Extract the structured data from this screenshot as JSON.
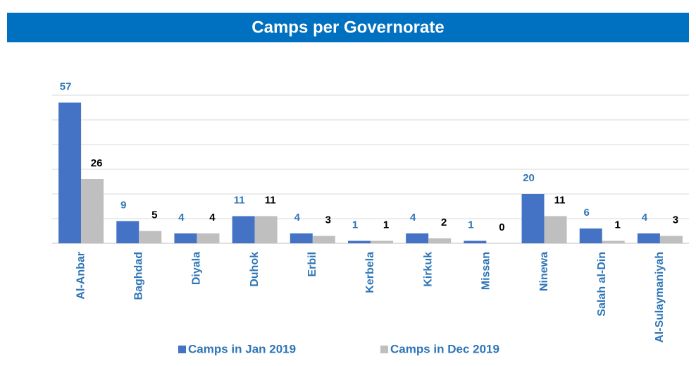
{
  "chart_data": {
    "type": "bar",
    "title": "Camps per Governorate",
    "categories": [
      "Al-Anbar",
      "Baghdad",
      "Diyala",
      "Duhok",
      "Erbil",
      "Kerbela",
      "Kirkuk",
      "Missan",
      "Ninewa",
      "Salah al-Din",
      "Al-Sulaymaniyah"
    ],
    "series": [
      {
        "name": "Camps in Jan 2019",
        "color": "#4472c4",
        "label_color": "#2e75b6",
        "values": [
          57,
          9,
          4,
          11,
          4,
          1,
          4,
          1,
          20,
          6,
          4
        ]
      },
      {
        "name": "Camps in Dec 2019",
        "color": "#bfbfbf",
        "label_color": "#000000",
        "values": [
          26,
          5,
          4,
          11,
          3,
          1,
          2,
          0,
          11,
          1,
          3
        ]
      }
    ],
    "ylim": [
      0,
      60
    ],
    "yticks": [
      0,
      10,
      20,
      30,
      40,
      50,
      60
    ],
    "grid": true,
    "legend": "bottom"
  }
}
